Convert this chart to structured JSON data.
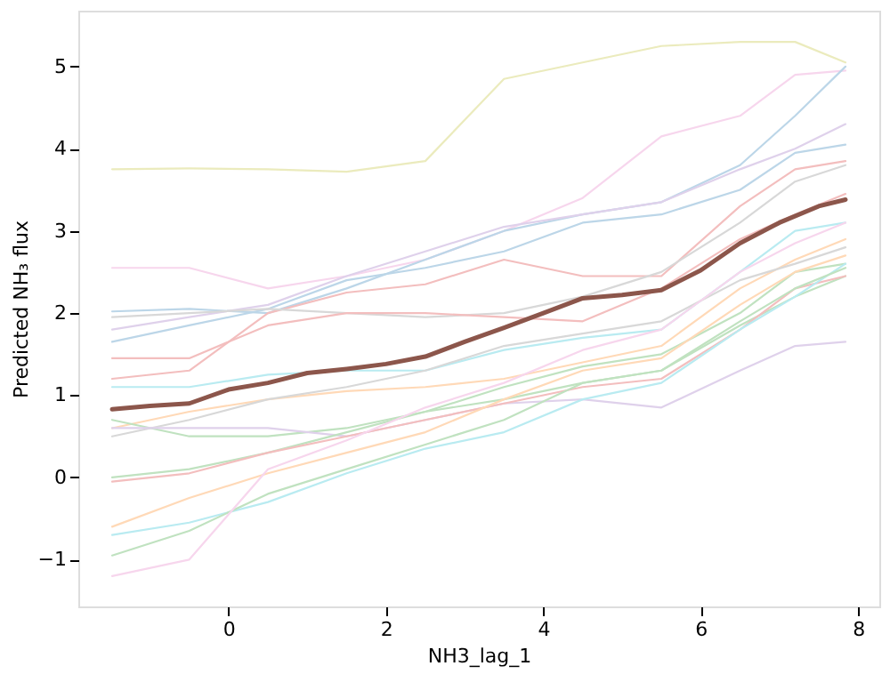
{
  "chart_data": {
    "type": "line",
    "xlabel": "NH3_lag_1",
    "ylabel": "Predicted NH₃ flux",
    "xlim": [
      -1.91,
      8.27
    ],
    "ylim": [
      -1.57,
      5.68
    ],
    "xticks": [
      0,
      2,
      4,
      6,
      8
    ],
    "yticks": [
      -1,
      0,
      1,
      2,
      3,
      4,
      5
    ],
    "grid": false,
    "marker": "none",
    "line_style": "solid",
    "x": [
      -1.48,
      -0.5,
      0.5,
      1.5,
      2.5,
      3.5,
      4.5,
      5.5,
      6.5,
      7.2,
      7.84
    ],
    "series": [
      {
        "color": "#ebebbd",
        "values": [
          3.75,
          3.76,
          3.75,
          3.72,
          3.85,
          4.85,
          5.05,
          5.25,
          5.3,
          5.3,
          5.05
        ]
      },
      {
        "color": "#f7d6ed",
        "values": [
          2.55,
          2.55,
          2.3,
          2.45,
          2.65,
          3.0,
          3.4,
          4.15,
          4.4,
          4.9,
          4.95
        ]
      },
      {
        "color": "#bcd6e8",
        "values": [
          2.02,
          2.05,
          2.0,
          2.3,
          2.65,
          3.0,
          3.2,
          3.35,
          3.8,
          4.4,
          5.0
        ]
      },
      {
        "color": "#dfd1eb",
        "values": [
          1.8,
          1.95,
          2.1,
          2.45,
          2.75,
          3.05,
          3.2,
          3.35,
          3.75,
          4.0,
          4.3
        ]
      },
      {
        "color": "#bcd6e8",
        "values": [
          1.65,
          1.85,
          2.05,
          2.4,
          2.55,
          2.75,
          3.1,
          3.2,
          3.5,
          3.95,
          4.05
        ]
      },
      {
        "color": "#f3bebe",
        "values": [
          1.2,
          1.3,
          2.0,
          2.25,
          2.35,
          2.65,
          2.45,
          2.45,
          3.3,
          3.75,
          3.85
        ]
      },
      {
        "color": "#d8d8d8",
        "values": [
          1.95,
          2.0,
          2.05,
          2.0,
          1.95,
          2.0,
          2.2,
          2.5,
          3.1,
          3.6,
          3.8
        ]
      },
      {
        "color": "#f3bebe",
        "values": [
          1.45,
          1.45,
          1.85,
          2.0,
          2.0,
          1.95,
          1.9,
          2.3,
          2.9,
          3.2,
          3.45
        ]
      },
      {
        "color": "#b9ebf1",
        "values": [
          1.1,
          1.1,
          1.25,
          1.3,
          1.3,
          1.55,
          1.7,
          1.8,
          2.5,
          3.0,
          3.1
        ]
      },
      {
        "color": "#ffd9b7",
        "values": [
          0.6,
          0.8,
          0.95,
          1.05,
          1.1,
          1.2,
          1.4,
          1.6,
          2.3,
          2.65,
          2.9
        ]
      },
      {
        "color": "#d8d8d8",
        "values": [
          0.5,
          0.7,
          0.95,
          1.1,
          1.3,
          1.6,
          1.75,
          1.9,
          2.4,
          2.6,
          2.8
        ]
      },
      {
        "color": "#c0e2c0",
        "values": [
          0.7,
          0.5,
          0.5,
          0.6,
          0.8,
          1.1,
          1.35,
          1.5,
          2.0,
          2.5,
          2.6
        ]
      },
      {
        "color": "#dfd1eb",
        "values": [
          0.6,
          0.6,
          0.6,
          0.5,
          0.7,
          0.9,
          0.95,
          0.85,
          1.3,
          1.6,
          1.65
        ]
      },
      {
        "color": "#c0e2c0",
        "values": [
          0.0,
          0.1,
          0.3,
          0.55,
          0.8,
          0.95,
          1.15,
          1.3,
          1.85,
          2.2,
          2.45
        ]
      },
      {
        "color": "#f3bebe",
        "values": [
          -0.05,
          0.05,
          0.3,
          0.5,
          0.7,
          0.9,
          1.1,
          1.2,
          1.8,
          2.3,
          2.45
        ]
      },
      {
        "color": "#ffd9b7",
        "values": [
          -0.6,
          -0.25,
          0.05,
          0.3,
          0.55,
          0.95,
          1.3,
          1.45,
          2.1,
          2.5,
          2.7
        ]
      },
      {
        "color": "#b9ebf1",
        "values": [
          -0.7,
          -0.55,
          -0.3,
          0.05,
          0.35,
          0.55,
          0.95,
          1.15,
          1.8,
          2.2,
          2.6
        ]
      },
      {
        "color": "#c0e2c0",
        "values": [
          -0.95,
          -0.65,
          -0.2,
          0.1,
          0.4,
          0.7,
          1.15,
          1.3,
          1.9,
          2.3,
          2.55
        ]
      },
      {
        "color": "#f7d6ed",
        "values": [
          -1.2,
          -1.0,
          0.1,
          0.45,
          0.85,
          1.15,
          1.55,
          1.8,
          2.5,
          2.85,
          3.1
        ]
      },
      {
        "color": "#8c564b",
        "x": [
          -1.48,
          -1,
          -0.5,
          0,
          0.5,
          1,
          1.5,
          2,
          2.5,
          3,
          3.5,
          4,
          4.5,
          5,
          5.5,
          6,
          6.5,
          7,
          7.5,
          7.84
        ],
        "values": [
          0.83,
          0.87,
          0.9,
          1.07,
          1.15,
          1.27,
          1.32,
          1.38,
          1.47,
          1.65,
          1.82,
          2.0,
          2.18,
          2.22,
          2.28,
          2.52,
          2.85,
          3.1,
          3.3,
          3.38
        ]
      }
    ]
  }
}
